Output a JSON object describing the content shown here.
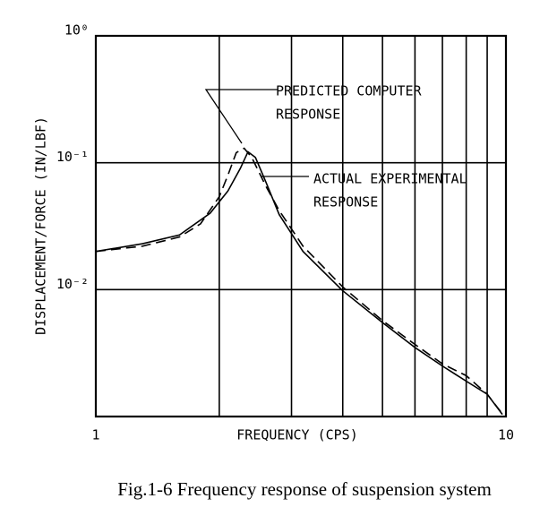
{
  "chart_data": {
    "type": "line",
    "xlabel": "FREQUENCY (CPS)",
    "ylabel": "DISPLACEMENT/FORCE (IN/LBF)",
    "caption": "Fig.1-6  Frequency response of suspension system",
    "xscale": "log",
    "yscale": "log",
    "xlim": [
      1,
      10
    ],
    "ylim": [
      0.001,
      1
    ],
    "xticks": [
      1,
      10
    ],
    "xgrid": [
      2,
      3,
      4,
      5,
      6,
      7,
      8,
      9
    ],
    "yticks": [
      {
        "value": 1,
        "label": "10⁰"
      },
      {
        "value": 0.1,
        "label": "10⁻¹"
      },
      {
        "value": 0.01,
        "label": "10⁻²"
      }
    ],
    "series": [
      {
        "name_lines": [
          "PREDICTED COMPUTER",
          "RESPONSE"
        ],
        "color": "#000",
        "style": "dashed",
        "x": [
          1,
          1.3,
          1.6,
          1.8,
          2.0,
          2.1,
          2.2,
          2.3,
          2.4,
          2.6,
          2.8,
          3.2,
          4,
          5,
          6,
          7,
          8,
          9,
          9.8
        ],
        "values": [
          0.02,
          0.022,
          0.026,
          0.033,
          0.054,
          0.08,
          0.12,
          0.13,
          0.11,
          0.065,
          0.042,
          0.022,
          0.0105,
          0.0057,
          0.0037,
          0.0026,
          0.0021,
          0.0015,
          0.00105
        ]
      },
      {
        "name_lines": [
          "ACTUAL EXPERIMENTAL",
          "RESPONSE"
        ],
        "color": "#000",
        "style": "solid",
        "x": [
          1,
          1.3,
          1.6,
          1.9,
          2.1,
          2.25,
          2.35,
          2.45,
          2.6,
          2.8,
          3.2,
          4,
          5,
          6,
          7,
          8,
          9,
          9.8
        ],
        "values": [
          0.02,
          0.023,
          0.027,
          0.04,
          0.06,
          0.09,
          0.122,
          0.11,
          0.07,
          0.039,
          0.02,
          0.0098,
          0.0055,
          0.0035,
          0.0025,
          0.0019,
          0.0015,
          0.00104
        ]
      }
    ]
  }
}
